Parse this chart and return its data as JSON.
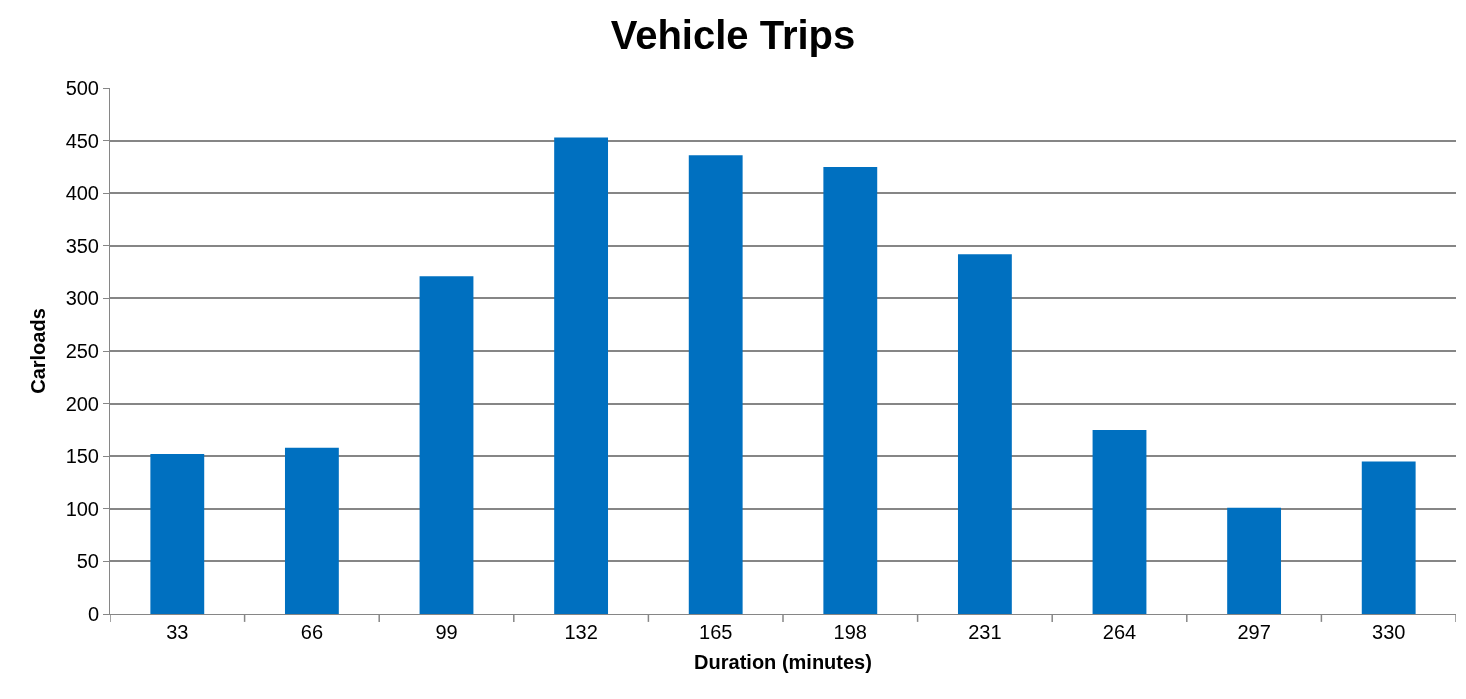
{
  "chart_data": {
    "type": "bar",
    "title": "Vehicle Trips",
    "xlabel": "Duration (minutes)",
    "ylabel": "Carloads",
    "categories": [
      "33",
      "66",
      "99",
      "132",
      "165",
      "198",
      "231",
      "264",
      "297",
      "330"
    ],
    "values": [
      152,
      158,
      321,
      453,
      436,
      425,
      342,
      175,
      101,
      145
    ],
    "color": "#0070c0",
    "ylim": [
      0,
      500
    ],
    "yticks": [
      0,
      50,
      100,
      150,
      200,
      250,
      300,
      350,
      400,
      450,
      500
    ],
    "grid": "y",
    "legend": false
  }
}
